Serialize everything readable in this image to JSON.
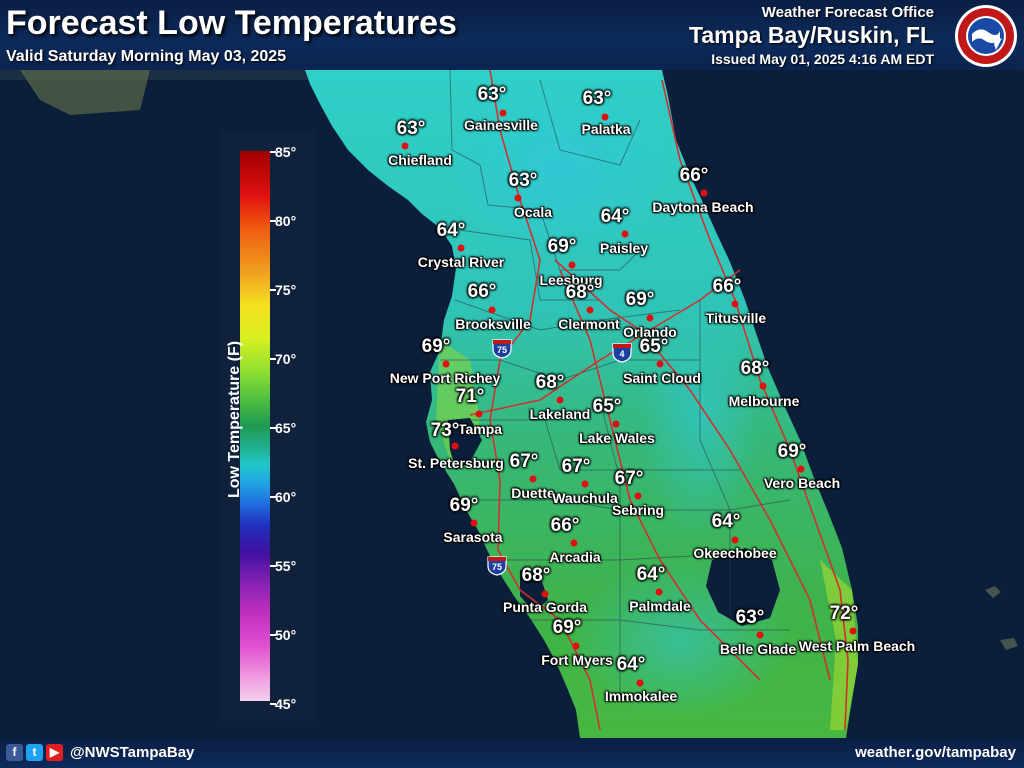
{
  "header": {
    "title": "Forecast Low Temperatures",
    "valid": "Valid Saturday Morning May 03, 2025",
    "wfo_label": "Weather Forecast Office",
    "office": "Tampa Bay/Ruskin, FL",
    "issued": "Issued May 01, 2025 4:16 AM EDT",
    "logo_text": "NATIONAL WEATHER SERVICE"
  },
  "legend": {
    "title": "Low Temperature (F)",
    "ticks": [
      "85°",
      "80°",
      "75°",
      "70°",
      "65°",
      "60°",
      "55°",
      "50°",
      "45°"
    ]
  },
  "interstates": [
    "75",
    "4",
    "75"
  ],
  "stations": [
    {
      "name": "Gainesville",
      "temp": "63°"
    },
    {
      "name": "Palatka",
      "temp": "63°"
    },
    {
      "name": "Chiefland",
      "temp": "63°"
    },
    {
      "name": "Ocala",
      "temp": "63°"
    },
    {
      "name": "Daytona Beach",
      "temp": "66°"
    },
    {
      "name": "Paisley",
      "temp": "64°"
    },
    {
      "name": "Crystal River",
      "temp": "64°"
    },
    {
      "name": "Leesburg",
      "temp": "69°"
    },
    {
      "name": "Brooksville",
      "temp": "66°"
    },
    {
      "name": "Clermont",
      "temp": "68°"
    },
    {
      "name": "Orlando",
      "temp": "69°"
    },
    {
      "name": "Titusville",
      "temp": "66°"
    },
    {
      "name": "New Port Richey",
      "temp": "69°"
    },
    {
      "name": "Saint Cloud",
      "temp": "65°"
    },
    {
      "name": "Lakeland",
      "temp": "68°"
    },
    {
      "name": "Melbourne",
      "temp": "68°"
    },
    {
      "name": "Tampa",
      "temp": "71°"
    },
    {
      "name": "Lake Wales",
      "temp": "65°"
    },
    {
      "name": "St. Petersburg",
      "temp": "73°"
    },
    {
      "name": "Duette",
      "temp": "67°"
    },
    {
      "name": "Wauchula",
      "temp": "67°"
    },
    {
      "name": "Sebring",
      "temp": "67°"
    },
    {
      "name": "Vero Beach",
      "temp": "69°"
    },
    {
      "name": "Sarasota",
      "temp": "69°"
    },
    {
      "name": "Arcadia",
      "temp": "66°"
    },
    {
      "name": "Okeechobee",
      "temp": "64°"
    },
    {
      "name": "Punta Gorda",
      "temp": "68°"
    },
    {
      "name": "Palmdale",
      "temp": "64°"
    },
    {
      "name": "Fort Myers",
      "temp": "69°"
    },
    {
      "name": "Belle Glade",
      "temp": "63°"
    },
    {
      "name": "West Palm Beach",
      "temp": "72°"
    },
    {
      "name": "Immokalee",
      "temp": "64°"
    }
  ],
  "footer": {
    "handle": "@NWSTampaBay",
    "site": "weather.gov/tampabay",
    "social_icons": [
      "facebook-icon",
      "twitter-icon",
      "youtube-icon"
    ]
  },
  "colors": {
    "ocean": "#0b1e3a",
    "cool_land": "#2fc8c0",
    "warm_land": "#3fb24a",
    "station_dot": "#e01010",
    "roads": "#d03030"
  }
}
